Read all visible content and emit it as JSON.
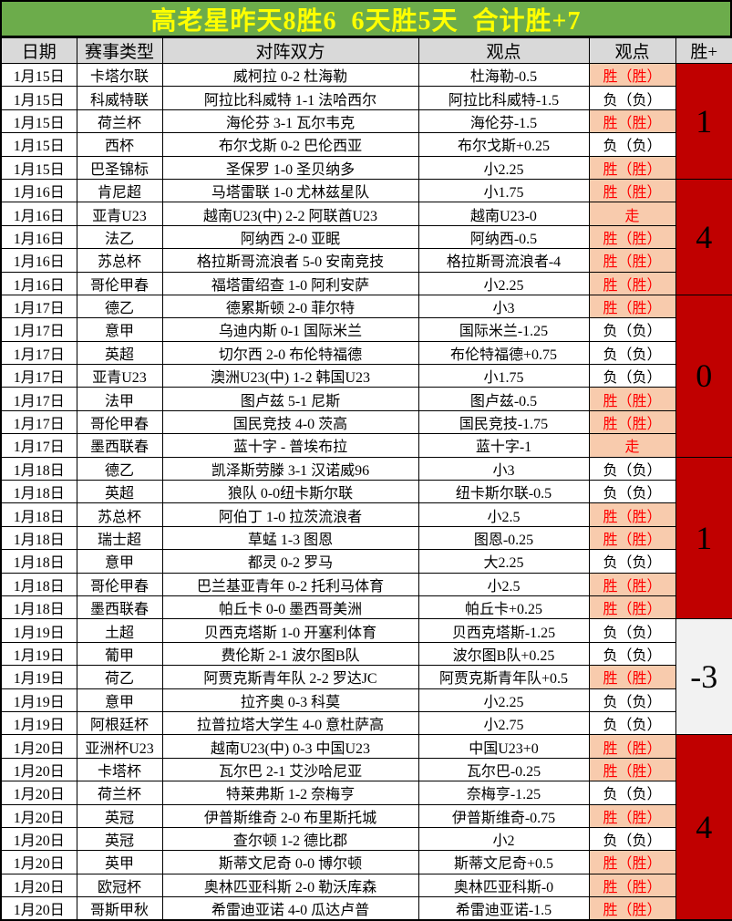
{
  "title": "高老星昨天8胜6  6天胜5天  合计胜+7",
  "columns": [
    "日期",
    "赛事类型",
    "对阵双方",
    "观点",
    "观点",
    "胜+"
  ],
  "colors": {
    "title_bg": "#6CAC4B",
    "title_text": "#FFFF00",
    "header_bg": "#D9D9D9",
    "win_bg": "#F8CBAD",
    "win_text": "#FF0000",
    "loss_bg": "#FFFFFF",
    "loss_text": "#000000",
    "total_red_bg": "#C00000",
    "total_gray_bg": "#F2F2F2",
    "border": "#000000"
  },
  "groups": [
    {
      "date": "1月15日",
      "total": "1",
      "total_theme": "red",
      "rows": [
        {
          "league": "卡塔尔联",
          "match": "威柯拉 0-2 杜海勒",
          "pick": "杜海勒-0.5",
          "result": "胜（胜）",
          "status": "win"
        },
        {
          "league": "科威特联",
          "match": "阿拉比科威特 1-1 法哈西尔",
          "pick": "阿拉比科威特-1.5",
          "result": "负（负）",
          "status": "loss"
        },
        {
          "league": "荷兰杯",
          "match": "海伦芬 3-1 瓦尔韦克",
          "pick": "海伦芬-1.5",
          "result": "胜（胜）",
          "status": "win"
        },
        {
          "league": "西杯",
          "match": "布尔戈斯 0-2 巴伦西亚",
          "pick": "布尔戈斯+0.25",
          "result": "负（负）",
          "status": "loss"
        },
        {
          "league": "巴圣锦标",
          "match": "圣保罗 1-0 圣贝纳多",
          "pick": "小2.25",
          "result": "胜（胜）",
          "status": "win"
        }
      ]
    },
    {
      "date": "1月16日",
      "total": "4",
      "total_theme": "red",
      "rows": [
        {
          "league": "肯尼超",
          "match": "马塔雷联 1-0 尤林兹星队",
          "pick": "小1.75",
          "result": "胜（胜）",
          "status": "win"
        },
        {
          "league": "亚青U23",
          "match": "越南U23(中) 2-2 阿联酋U23",
          "pick": "越南U23-0",
          "result": "走",
          "status": "push"
        },
        {
          "league": "法乙",
          "match": "阿纳西 2-0 亚眠",
          "pick": "阿纳西-0.5",
          "result": "胜（胜）",
          "status": "win"
        },
        {
          "league": "苏总杯",
          "match": "格拉斯哥流浪者 5-0 安南竞技",
          "pick": "格拉斯哥流浪者-4",
          "result": "胜（胜）",
          "status": "win"
        },
        {
          "league": "哥伦甲春",
          "match": "福塔雷绍查 1-0 阿利安萨",
          "pick": "小2.25",
          "result": "胜（胜）",
          "status": "win"
        }
      ]
    },
    {
      "date": "1月17日",
      "total": "0",
      "total_theme": "red",
      "rows": [
        {
          "league": "德乙",
          "match": "德累斯顿 2-0 菲尔特",
          "pick": "小3",
          "result": "胜（胜）",
          "status": "win"
        },
        {
          "league": "意甲",
          "match": "乌迪内斯 0-1 国际米兰",
          "pick": "国际米兰-1.25",
          "result": "负（负）",
          "status": "loss"
        },
        {
          "league": "英超",
          "match": "切尔西 2-0 布伦特福德",
          "pick": "布伦特福德+0.75",
          "result": "负（负）",
          "status": "loss"
        },
        {
          "league": "亚青U23",
          "match": "澳洲U23(中) 1-2 韩国U23",
          "pick": "小1.75",
          "result": "负（负）",
          "status": "loss"
        },
        {
          "league": "法甲",
          "match": "图卢兹 5-1 尼斯",
          "pick": "图卢兹-0.5",
          "result": "胜（胜）",
          "status": "win"
        },
        {
          "league": "哥伦甲春",
          "match": "国民竞技 4-0 茨高",
          "pick": "国民竞技-1.75",
          "result": "胜（胜）",
          "status": "win"
        },
        {
          "league": "墨西联春",
          "match": "蓝十字 - 普埃布拉",
          "pick": "蓝十字-1",
          "result": "走",
          "status": "push"
        }
      ]
    },
    {
      "date": "1月18日",
      "total": "1",
      "total_theme": "red",
      "rows": [
        {
          "league": "德乙",
          "match": "凯泽斯劳滕 3-1 汉诺威96",
          "pick": "小3",
          "result": "负（负）",
          "status": "loss"
        },
        {
          "league": "英超",
          "match": "狼队 0-0纽卡斯尔联",
          "pick": "纽卡斯尔联-0.5",
          "result": "负（负）",
          "status": "loss"
        },
        {
          "league": "苏总杯",
          "match": "阿伯丁 1-0 拉茨流浪者",
          "pick": "小2.5",
          "result": "胜（胜）",
          "status": "win"
        },
        {
          "league": "瑞士超",
          "match": "草蜢 1-3 图恩",
          "pick": "图恩-0.25",
          "result": "胜（胜）",
          "status": "win"
        },
        {
          "league": "意甲",
          "match": "都灵 0-2 罗马",
          "pick": "大2.25",
          "result": "负（负）",
          "status": "loss"
        },
        {
          "league": "哥伦甲春",
          "match": "巴兰基亚青年 0-2 托利马体育",
          "pick": "小2.5",
          "result": "胜（胜）",
          "status": "win"
        },
        {
          "league": "墨西联春",
          "match": "帕丘卡 0-0 墨西哥美洲",
          "pick": "帕丘卡+0.25",
          "result": "胜（胜）",
          "status": "win"
        }
      ]
    },
    {
      "date": "1月19日",
      "total": "-3",
      "total_theme": "gray",
      "rows": [
        {
          "league": "土超",
          "match": "贝西克塔斯 1-0 开塞利体育",
          "pick": "贝西克塔斯-1.25",
          "result": "负（负）",
          "status": "loss"
        },
        {
          "league": "葡甲",
          "match": "费伦斯 2-1 波尔图B队",
          "pick": "波尔图B队+0.25",
          "result": "负（负）",
          "status": "loss"
        },
        {
          "league": "荷乙",
          "match": "阿贾克斯青年队 2-2 罗达JC",
          "pick": "阿贾克斯青年队+0.5",
          "result": "胜（胜）",
          "status": "win"
        },
        {
          "league": "意甲",
          "match": "拉齐奥 0-3 科莫",
          "pick": "小2.25",
          "result": "负（负）",
          "status": "loss"
        },
        {
          "league": "阿根廷杯",
          "match": "拉普拉塔大学生 4-0 意杜萨高",
          "pick": "小2.75",
          "result": "负（负）",
          "status": "loss"
        }
      ]
    },
    {
      "date": "1月20日",
      "total": "4",
      "total_theme": "red",
      "rows": [
        {
          "league": "亚洲杯U23",
          "match": "越南U23(中) 0-3 中国U23",
          "pick": "中国U23+0",
          "result": "胜（胜）",
          "status": "win"
        },
        {
          "league": "卡塔杯",
          "match": "瓦尔巴 2-1 艾沙哈尼亚",
          "pick": "瓦尔巴-0.25",
          "result": "胜（胜）",
          "status": "win"
        },
        {
          "league": "荷兰杯",
          "match": "特莱弗斯 1-2 奈梅亨",
          "pick": "奈梅亨-1.25",
          "result": "负（负）",
          "status": "loss"
        },
        {
          "league": "英冠",
          "match": "伊普斯维奇 2-0 布里斯托城",
          "pick": "伊普斯维奇-0.75",
          "result": "胜（胜）",
          "status": "win"
        },
        {
          "league": "英冠",
          "match": "查尔顿 1-2 德比郡",
          "pick": "小2",
          "result": "负（负）",
          "status": "loss"
        },
        {
          "league": "英甲",
          "match": "斯蒂文尼奇 0-0 博尔顿",
          "pick": "斯蒂文尼奇+0.5",
          "result": "胜（胜）",
          "status": "win"
        },
        {
          "league": "欧冠杯",
          "match": "奥林匹亚科斯 2-0 勒沃库森",
          "pick": "奥林匹亚科斯-0",
          "result": "胜（胜）",
          "status": "win"
        },
        {
          "league": "哥斯甲秋",
          "match": "希雷迪亚诺 4-0 瓜达卢普",
          "pick": "希雷迪亚诺-1.5",
          "result": "胜（胜）",
          "status": "win"
        }
      ]
    }
  ]
}
